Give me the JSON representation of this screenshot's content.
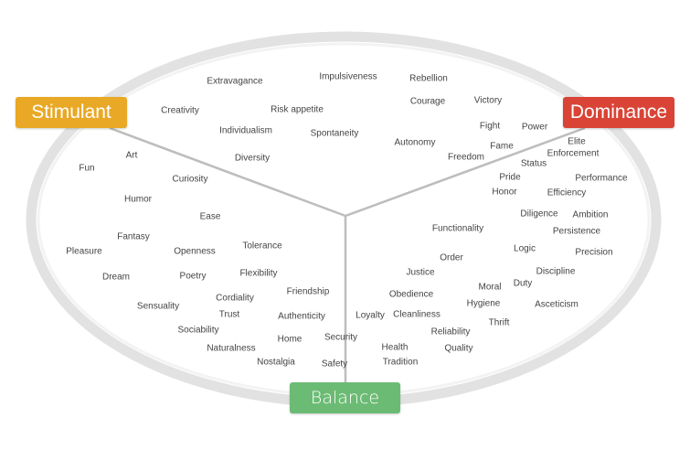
{
  "categories": {
    "stimulant": {
      "label": "Stimulant",
      "color": "#e9a825"
    },
    "dominance": {
      "label": "Dominance",
      "color": "#d94436"
    },
    "balance": {
      "label": "Balance",
      "color": "#6bbb74"
    }
  },
  "words": [
    "Extravagance",
    "Impulsiveness",
    "Rebellion",
    "Creativity",
    "Risk appetite",
    "Courage",
    "Victory",
    "Individualism",
    "Spontaneity",
    "Fight",
    "Power",
    "Autonomy",
    "Fame",
    "Elite",
    "Freedom",
    "Enforcement",
    "Status",
    "Art",
    "Fun",
    "Diversity",
    "Curiosity",
    "Pride",
    "Performance",
    "Honor",
    "Efficiency",
    "Humor",
    "Ease",
    "Diligence",
    "Ambition",
    "Functionality",
    "Persistence",
    "Fantasy",
    "Pleasure",
    "Openness",
    "Tolerance",
    "Logic",
    "Precision",
    "Order",
    "Dream",
    "Poetry",
    "Flexibility",
    "Justice",
    "Discipline",
    "Duty",
    "Moral",
    "Friendship",
    "Obedience",
    "Cordiality",
    "Hygiene",
    "Asceticism",
    "Sensuality",
    "Trust",
    "Authenticity",
    "Loyalty",
    "Cleanliness",
    "Thrift",
    "Sociability",
    "Reliability",
    "Home",
    "Security",
    "Naturalness",
    "Health",
    "Quality",
    "Nostalgia",
    "Safety",
    "Tradition"
  ]
}
